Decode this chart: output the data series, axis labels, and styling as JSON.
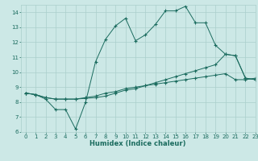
{
  "xlabel": "Humidex (Indice chaleur)",
  "bg_color": "#cce8e6",
  "grid_color": "#aacfcc",
  "line_color": "#1a6b5e",
  "xlim": [
    -0.5,
    23
  ],
  "ylim": [
    6,
    14.5
  ],
  "xticks": [
    0,
    1,
    2,
    3,
    4,
    5,
    6,
    7,
    8,
    9,
    10,
    11,
    12,
    13,
    14,
    15,
    16,
    17,
    18,
    19,
    20,
    21,
    22,
    23
  ],
  "yticks": [
    6,
    7,
    8,
    9,
    10,
    11,
    12,
    13,
    14
  ],
  "series1_x": [
    0,
    1,
    2,
    3,
    4,
    5,
    6,
    7,
    8,
    9,
    10,
    11,
    12,
    13,
    14,
    15,
    16,
    17,
    18,
    19,
    20,
    21,
    22,
    23
  ],
  "series1_y": [
    8.6,
    8.5,
    8.2,
    7.5,
    7.5,
    6.2,
    8.0,
    10.7,
    12.2,
    13.1,
    13.6,
    12.1,
    12.5,
    13.2,
    14.1,
    14.1,
    14.4,
    13.3,
    13.3,
    11.8,
    11.2,
    11.1,
    9.6,
    9.5
  ],
  "series2_x": [
    0,
    1,
    2,
    3,
    4,
    5,
    6,
    7,
    8,
    9,
    10,
    11,
    12,
    13,
    14,
    15,
    16,
    17,
    18,
    19,
    20,
    21,
    22,
    23
  ],
  "series2_y": [
    8.6,
    8.5,
    8.3,
    8.2,
    8.2,
    8.2,
    8.3,
    8.4,
    8.6,
    8.7,
    8.9,
    9.0,
    9.1,
    9.2,
    9.3,
    9.4,
    9.5,
    9.6,
    9.7,
    9.8,
    9.9,
    9.5,
    9.5,
    9.6
  ],
  "series3_x": [
    0,
    1,
    2,
    3,
    4,
    5,
    6,
    7,
    8,
    9,
    10,
    11,
    12,
    13,
    14,
    15,
    16,
    17,
    18,
    19,
    20,
    21,
    22,
    23
  ],
  "series3_y": [
    8.6,
    8.5,
    8.3,
    8.2,
    8.2,
    8.2,
    8.25,
    8.3,
    8.4,
    8.6,
    8.8,
    8.9,
    9.1,
    9.3,
    9.5,
    9.7,
    9.9,
    10.1,
    10.3,
    10.5,
    11.2,
    11.1,
    9.6,
    9.5
  ]
}
